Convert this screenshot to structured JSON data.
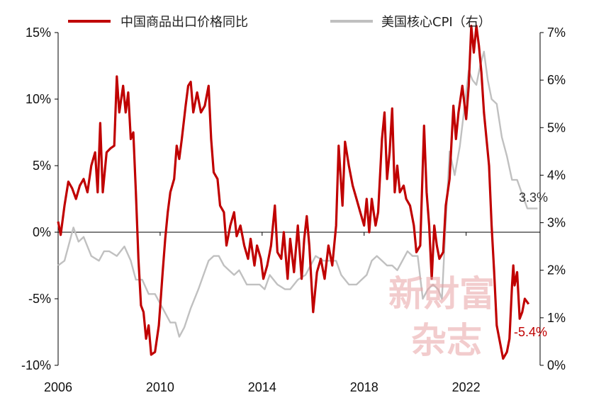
{
  "chart_data": {
    "type": "line",
    "title": "",
    "xlabel": "",
    "ylabel": "",
    "xlim": [
      2006.0,
      2024.9
    ],
    "x_ticks": [
      "2006",
      "2010",
      "2014",
      "2018",
      "2022"
    ],
    "left_axis": {
      "ylim": [
        -10,
        15
      ],
      "ticks": [
        "-10%",
        "-5%",
        "0%",
        "5%",
        "10%",
        "15%"
      ]
    },
    "right_axis": {
      "ylim": [
        0,
        7
      ],
      "ticks": [
        "0%",
        "1%",
        "2%",
        "3%",
        "4%",
        "5%",
        "6%",
        "7%"
      ]
    },
    "legend_position": "top",
    "grid": false,
    "series": [
      {
        "name": "中国商品出口价格同比",
        "axis": "left",
        "color": "#c00000",
        "points": [
          [
            2006.0,
            0.8
          ],
          [
            2006.1,
            -0.2
          ],
          [
            2006.25,
            2.0
          ],
          [
            2006.4,
            3.8
          ],
          [
            2006.55,
            3.3
          ],
          [
            2006.7,
            2.5
          ],
          [
            2006.85,
            3.5
          ],
          [
            2007.0,
            4.0
          ],
          [
            2007.15,
            3.0
          ],
          [
            2007.3,
            5.0
          ],
          [
            2007.45,
            6.0
          ],
          [
            2007.55,
            3.0
          ],
          [
            2007.65,
            8.2
          ],
          [
            2007.75,
            3.0
          ],
          [
            2007.9,
            6.0
          ],
          [
            2008.05,
            6.3
          ],
          [
            2008.2,
            6.5
          ],
          [
            2008.3,
            11.7
          ],
          [
            2008.4,
            9.0
          ],
          [
            2008.55,
            11.0
          ],
          [
            2008.65,
            9.0
          ],
          [
            2008.75,
            10.5
          ],
          [
            2008.85,
            7.0
          ],
          [
            2008.95,
            7.5
          ],
          [
            2009.05,
            3.0
          ],
          [
            2009.15,
            -2.0
          ],
          [
            2009.25,
            -5.5
          ],
          [
            2009.35,
            -6.0
          ],
          [
            2009.45,
            -8.0
          ],
          [
            2009.55,
            -7.0
          ],
          [
            2009.65,
            -9.2
          ],
          [
            2009.8,
            -9.0
          ],
          [
            2009.95,
            -7.0
          ],
          [
            2010.1,
            -3.0
          ],
          [
            2010.2,
            -0.5
          ],
          [
            2010.3,
            1.5
          ],
          [
            2010.4,
            3.0
          ],
          [
            2010.55,
            4.0
          ],
          [
            2010.65,
            6.5
          ],
          [
            2010.75,
            5.5
          ],
          [
            2010.85,
            7.0
          ],
          [
            2011.0,
            9.5
          ],
          [
            2011.1,
            11.0
          ],
          [
            2011.2,
            11.3
          ],
          [
            2011.3,
            9.0
          ],
          [
            2011.45,
            10.5
          ],
          [
            2011.6,
            9.0
          ],
          [
            2011.75,
            9.5
          ],
          [
            2011.9,
            11.0
          ],
          [
            2012.0,
            7.0
          ],
          [
            2012.1,
            4.5
          ],
          [
            2012.25,
            4.0
          ],
          [
            2012.35,
            2.0
          ],
          [
            2012.5,
            1.5
          ],
          [
            2012.6,
            -1.0
          ],
          [
            2012.75,
            0.5
          ],
          [
            2012.9,
            1.5
          ],
          [
            2013.0,
            -0.3
          ],
          [
            2013.15,
            0.5
          ],
          [
            2013.3,
            -1.0
          ],
          [
            2013.45,
            -2.0
          ],
          [
            2013.55,
            -0.5
          ],
          [
            2013.7,
            -2.5
          ],
          [
            2013.8,
            -1.0
          ],
          [
            2013.95,
            -2.0
          ],
          [
            2014.05,
            -3.5
          ],
          [
            2014.2,
            -2.5
          ],
          [
            2014.35,
            -1.0
          ],
          [
            2014.5,
            2.0
          ],
          [
            2014.6,
            -1.5
          ],
          [
            2014.75,
            -2.0
          ],
          [
            2014.85,
            0.0
          ],
          [
            2015.0,
            -3.5
          ],
          [
            2015.1,
            -0.5
          ],
          [
            2015.25,
            -3.0
          ],
          [
            2015.4,
            0.5
          ],
          [
            2015.55,
            -3.5
          ],
          [
            2015.65,
            -0.5
          ],
          [
            2015.75,
            1.2
          ],
          [
            2015.85,
            -1.0
          ],
          [
            2016.0,
            -6.0
          ],
          [
            2016.15,
            -3.0
          ],
          [
            2016.3,
            -2.0
          ],
          [
            2016.45,
            -3.5
          ],
          [
            2016.6,
            -1.0
          ],
          [
            2016.75,
            -2.5
          ],
          [
            2016.9,
            0.5
          ],
          [
            2017.0,
            6.5
          ],
          [
            2017.15,
            2.0
          ],
          [
            2017.25,
            6.8
          ],
          [
            2017.4,
            5.0
          ],
          [
            2017.55,
            3.5
          ],
          [
            2017.7,
            2.5
          ],
          [
            2017.85,
            1.5
          ],
          [
            2018.0,
            0.5
          ],
          [
            2018.1,
            2.5
          ],
          [
            2018.2,
            0.0
          ],
          [
            2018.3,
            2.5
          ],
          [
            2018.45,
            0.5
          ],
          [
            2018.55,
            1.5
          ],
          [
            2018.7,
            7.0
          ],
          [
            2018.8,
            9.0
          ],
          [
            2018.9,
            4.0
          ],
          [
            2019.0,
            6.0
          ],
          [
            2019.1,
            9.3
          ],
          [
            2019.2,
            3.0
          ],
          [
            2019.3,
            5.0
          ],
          [
            2019.4,
            3.0
          ],
          [
            2019.55,
            3.5
          ],
          [
            2019.65,
            2.5
          ],
          [
            2019.8,
            2.0
          ],
          [
            2019.95,
            0.5
          ],
          [
            2020.05,
            -1.5
          ],
          [
            2020.2,
            -1.0
          ],
          [
            2020.35,
            8.0
          ],
          [
            2020.45,
            3.0
          ],
          [
            2020.55,
            0.5
          ],
          [
            2020.65,
            -3.5
          ],
          [
            2020.75,
            0.5
          ],
          [
            2020.85,
            -1.0
          ],
          [
            2020.95,
            -2.0
          ],
          [
            2021.1,
            -1.5
          ],
          [
            2021.2,
            2.0
          ],
          [
            2021.35,
            4.0
          ],
          [
            2021.5,
            9.5
          ],
          [
            2021.6,
            7.0
          ],
          [
            2021.7,
            9.0
          ],
          [
            2021.85,
            11.0
          ],
          [
            2022.0,
            8.5
          ],
          [
            2022.1,
            11.0
          ],
          [
            2022.2,
            15.5
          ],
          [
            2022.3,
            13.5
          ],
          [
            2022.4,
            15.5
          ],
          [
            2022.5,
            14.0
          ],
          [
            2022.6,
            12.0
          ],
          [
            2022.7,
            9.0
          ],
          [
            2022.8,
            7.0
          ],
          [
            2022.9,
            5.0
          ],
          [
            2023.0,
            0.5
          ],
          [
            2023.1,
            -3.0
          ],
          [
            2023.2,
            -7.0
          ],
          [
            2023.3,
            -8.0
          ],
          [
            2023.45,
            -9.5
          ],
          [
            2023.6,
            -9.0
          ],
          [
            2023.7,
            -8.0
          ],
          [
            2023.8,
            -4.0
          ],
          [
            2023.85,
            -2.5
          ],
          [
            2023.9,
            -4.0
          ],
          [
            2024.0,
            -3.0
          ],
          [
            2024.1,
            -6.5
          ],
          [
            2024.2,
            -6.0
          ],
          [
            2024.3,
            -5.0
          ],
          [
            2024.45,
            -5.4
          ]
        ]
      },
      {
        "name": "美国核心CPI（右）",
        "axis": "right",
        "color": "#c0c0c0",
        "points": [
          [
            2006.0,
            2.1
          ],
          [
            2006.25,
            2.2
          ],
          [
            2006.45,
            2.6
          ],
          [
            2006.6,
            2.9
          ],
          [
            2006.8,
            2.6
          ],
          [
            2007.0,
            2.7
          ],
          [
            2007.3,
            2.3
          ],
          [
            2007.6,
            2.2
          ],
          [
            2007.8,
            2.4
          ],
          [
            2008.0,
            2.4
          ],
          [
            2008.3,
            2.3
          ],
          [
            2008.6,
            2.5
          ],
          [
            2008.85,
            2.2
          ],
          [
            2009.05,
            1.8
          ],
          [
            2009.3,
            1.8
          ],
          [
            2009.55,
            1.5
          ],
          [
            2009.8,
            1.5
          ],
          [
            2010.0,
            1.3
          ],
          [
            2010.2,
            1.1
          ],
          [
            2010.4,
            0.9
          ],
          [
            2010.6,
            0.9
          ],
          [
            2010.75,
            0.6
          ],
          [
            2010.95,
            0.8
          ],
          [
            2011.2,
            1.2
          ],
          [
            2011.5,
            1.6
          ],
          [
            2011.7,
            1.9
          ],
          [
            2011.9,
            2.2
          ],
          [
            2012.1,
            2.3
          ],
          [
            2012.3,
            2.3
          ],
          [
            2012.5,
            2.1
          ],
          [
            2012.7,
            2.0
          ],
          [
            2012.9,
            1.9
          ],
          [
            2013.1,
            2.0
          ],
          [
            2013.4,
            1.7
          ],
          [
            2013.7,
            1.7
          ],
          [
            2013.9,
            1.7
          ],
          [
            2014.1,
            1.6
          ],
          [
            2014.3,
            1.9
          ],
          [
            2014.6,
            1.7
          ],
          [
            2014.9,
            1.6
          ],
          [
            2015.1,
            1.6
          ],
          [
            2015.4,
            1.8
          ],
          [
            2015.7,
            1.9
          ],
          [
            2015.9,
            2.1
          ],
          [
            2016.1,
            2.3
          ],
          [
            2016.4,
            2.2
          ],
          [
            2016.7,
            2.2
          ],
          [
            2016.9,
            2.2
          ],
          [
            2017.1,
            1.9
          ],
          [
            2017.4,
            1.7
          ],
          [
            2017.7,
            1.7
          ],
          [
            2017.9,
            1.8
          ],
          [
            2018.1,
            1.9
          ],
          [
            2018.3,
            2.2
          ],
          [
            2018.5,
            2.3
          ],
          [
            2018.7,
            2.2
          ],
          [
            2018.9,
            2.1
          ],
          [
            2019.1,
            2.1
          ],
          [
            2019.3,
            2.0
          ],
          [
            2019.5,
            2.2
          ],
          [
            2019.7,
            2.4
          ],
          [
            2019.9,
            2.3
          ],
          [
            2020.1,
            2.3
          ],
          [
            2020.3,
            1.4
          ],
          [
            2020.5,
            1.6
          ],
          [
            2020.7,
            1.7
          ],
          [
            2020.9,
            1.6
          ],
          [
            2021.05,
            1.4
          ],
          [
            2021.2,
            3.0
          ],
          [
            2021.35,
            4.5
          ],
          [
            2021.55,
            4.0
          ],
          [
            2021.75,
            4.6
          ],
          [
            2021.95,
            5.5
          ],
          [
            2022.1,
            6.2
          ],
          [
            2022.25,
            6.0
          ],
          [
            2022.4,
            5.9
          ],
          [
            2022.55,
            6.3
          ],
          [
            2022.7,
            6.6
          ],
          [
            2022.85,
            6.0
          ],
          [
            2023.0,
            5.6
          ],
          [
            2023.2,
            5.5
          ],
          [
            2023.4,
            4.8
          ],
          [
            2023.6,
            4.4
          ],
          [
            2023.8,
            3.9
          ],
          [
            2024.0,
            3.9
          ],
          [
            2024.2,
            3.6
          ],
          [
            2024.4,
            3.3
          ],
          [
            2024.6,
            3.3
          ],
          [
            2024.8,
            3.3
          ]
        ]
      }
    ],
    "annotations": [
      {
        "text": "3.3%",
        "series": "美国核心CPI（右）"
      },
      {
        "text": "-5.4%",
        "series": "中国商品出口价格同比"
      }
    ]
  },
  "watermark": {
    "line1": "新財富",
    "line2": "杂志"
  }
}
